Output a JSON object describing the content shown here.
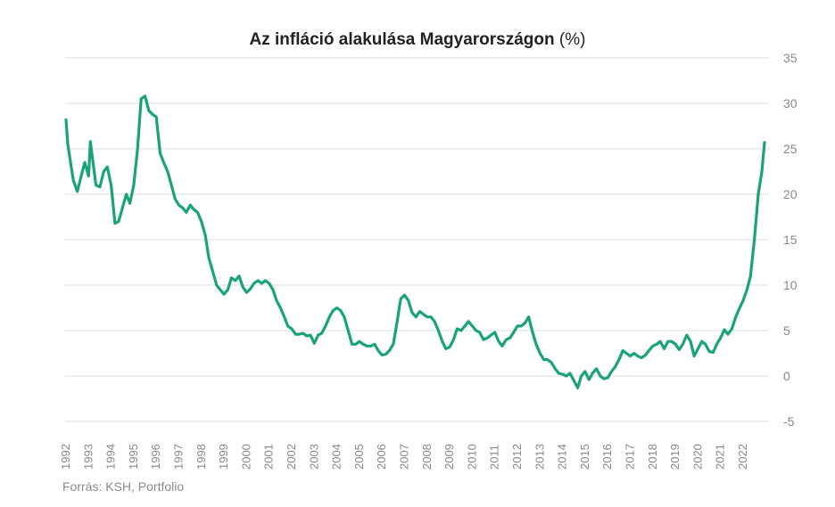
{
  "chart_data": {
    "type": "line",
    "title": "Az infláció alakulása Magyarországon",
    "title_unit": "(%)",
    "xlabel": "",
    "ylabel": "",
    "ylim": [
      -5,
      35
    ],
    "yticks": [
      -5,
      0,
      5,
      10,
      15,
      20,
      25,
      30,
      35
    ],
    "xticks": [
      "1992",
      "1993",
      "1994",
      "1995",
      "1996",
      "1997",
      "1998",
      "1999",
      "2000",
      "2001",
      "2002",
      "2003",
      "2004",
      "2005",
      "2006",
      "2007",
      "2008",
      "2009",
      "2010",
      "2011",
      "2012",
      "2013",
      "2014",
      "2015",
      "2016",
      "2017",
      "2018",
      "2019",
      "2020",
      "2021",
      "2022"
    ],
    "grid": true,
    "legend": "none",
    "line_color": "#1aa37a",
    "x": [
      1992.0,
      1992.08,
      1992.17,
      1992.33,
      1992.5,
      1992.67,
      1992.83,
      1993.0,
      1993.08,
      1993.17,
      1993.33,
      1993.5,
      1993.67,
      1993.83,
      1994.0,
      1994.17,
      1994.33,
      1994.5,
      1994.67,
      1994.83,
      1995.0,
      1995.17,
      1995.33,
      1995.5,
      1995.67,
      1995.83,
      1996.0,
      1996.17,
      1996.33,
      1996.5,
      1996.67,
      1996.83,
      1997.0,
      1997.17,
      1997.33,
      1997.5,
      1997.67,
      1997.83,
      1998.0,
      1998.17,
      1998.33,
      1998.5,
      1998.67,
      1998.83,
      1999.0,
      1999.17,
      1999.33,
      1999.5,
      1999.67,
      1999.83,
      2000.0,
      2000.17,
      2000.33,
      2000.5,
      2000.67,
      2000.83,
      2001.0,
      2001.17,
      2001.33,
      2001.5,
      2001.67,
      2001.83,
      2002.0,
      2002.17,
      2002.33,
      2002.5,
      2002.67,
      2002.83,
      2003.0,
      2003.17,
      2003.33,
      2003.5,
      2003.67,
      2003.83,
      2004.0,
      2004.17,
      2004.33,
      2004.5,
      2004.67,
      2004.83,
      2005.0,
      2005.17,
      2005.33,
      2005.5,
      2005.67,
      2005.83,
      2006.0,
      2006.17,
      2006.33,
      2006.5,
      2006.67,
      2006.83,
      2007.0,
      2007.17,
      2007.33,
      2007.5,
      2007.67,
      2007.83,
      2008.0,
      2008.17,
      2008.33,
      2008.5,
      2008.67,
      2008.83,
      2009.0,
      2009.17,
      2009.33,
      2009.5,
      2009.67,
      2009.83,
      2010.0,
      2010.17,
      2010.33,
      2010.5,
      2010.67,
      2010.83,
      2011.0,
      2011.17,
      2011.33,
      2011.5,
      2011.67,
      2011.83,
      2012.0,
      2012.17,
      2012.33,
      2012.5,
      2012.67,
      2012.83,
      2013.0,
      2013.17,
      2013.33,
      2013.5,
      2013.67,
      2013.83,
      2014.0,
      2014.17,
      2014.33,
      2014.5,
      2014.67,
      2014.83,
      2015.0,
      2015.17,
      2015.33,
      2015.5,
      2015.67,
      2015.83,
      2016.0,
      2016.17,
      2016.33,
      2016.5,
      2016.67,
      2016.83,
      2017.0,
      2017.17,
      2017.33,
      2017.5,
      2017.67,
      2017.83,
      2018.0,
      2018.17,
      2018.33,
      2018.5,
      2018.67,
      2018.83,
      2019.0,
      2019.17,
      2019.33,
      2019.5,
      2019.67,
      2019.83,
      2020.0,
      2020.17,
      2020.33,
      2020.5,
      2020.67,
      2020.83,
      2021.0,
      2021.17,
      2021.33,
      2021.5,
      2021.67,
      2021.83,
      2022.0,
      2022.17,
      2022.33,
      2022.5,
      2022.67,
      2022.83,
      2022.95
    ],
    "y": [
      28.2,
      25.5,
      24.0,
      21.5,
      20.3,
      22.0,
      23.5,
      22.0,
      25.8,
      24.0,
      21.0,
      20.8,
      22.5,
      23.0,
      21.0,
      16.8,
      17.0,
      18.5,
      20.0,
      19.0,
      21.0,
      25.0,
      30.5,
      30.8,
      29.2,
      28.8,
      28.5,
      24.5,
      23.5,
      22.5,
      21.0,
      19.5,
      18.8,
      18.5,
      18.0,
      18.8,
      18.3,
      18.0,
      17.0,
      15.5,
      13.0,
      11.5,
      10.0,
      9.5,
      9.0,
      9.5,
      10.8,
      10.5,
      11.0,
      9.8,
      9.2,
      9.6,
      10.2,
      10.5,
      10.2,
      10.5,
      10.2,
      9.5,
      8.3,
      7.5,
      6.5,
      5.5,
      5.2,
      4.6,
      4.6,
      4.7,
      4.4,
      4.5,
      3.6,
      4.5,
      4.7,
      5.5,
      6.5,
      7.2,
      7.5,
      7.2,
      6.5,
      5.0,
      3.5,
      3.5,
      3.8,
      3.5,
      3.3,
      3.3,
      3.5,
      2.8,
      2.3,
      2.4,
      2.8,
      3.5,
      6.0,
      8.5,
      8.9,
      8.3,
      7.0,
      6.5,
      7.1,
      6.8,
      6.5,
      6.5,
      6.0,
      5.0,
      3.8,
      3.0,
      3.2,
      4.0,
      5.2,
      5.0,
      5.5,
      6.0,
      5.5,
      5.0,
      4.8,
      4.0,
      4.2,
      4.5,
      4.8,
      3.8,
      3.3,
      4.0,
      4.2,
      4.8,
      5.5,
      5.5,
      5.8,
      6.5,
      4.8,
      3.5,
      2.5,
      1.8,
      1.8,
      1.5,
      0.8,
      0.3,
      0.2,
      0.0,
      0.3,
      -0.5,
      -1.3,
      0.0,
      0.5,
      -0.4,
      0.3,
      0.8,
      0.0,
      -0.3,
      -0.2,
      0.5,
      1.0,
      1.8,
      2.8,
      2.5,
      2.2,
      2.5,
      2.2,
      2.0,
      2.3,
      2.8,
      3.3,
      3.5,
      3.8,
      3.0,
      3.8,
      3.8,
      3.5,
      2.9,
      3.5,
      4.5,
      3.8,
      2.2,
      3.0,
      3.8,
      3.5,
      2.7,
      2.6,
      3.5,
      4.2,
      5.1,
      4.6,
      5.2,
      6.5,
      7.4,
      8.3,
      9.5,
      11.0,
      15.0,
      20.0,
      22.5,
      25.7
    ]
  },
  "source_note": "Forrás: KSH, Portfolio"
}
